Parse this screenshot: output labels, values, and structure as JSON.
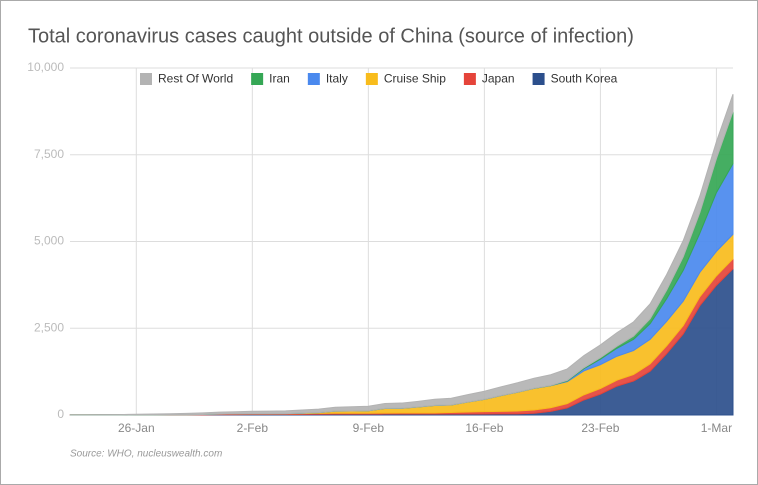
{
  "chart_data": {
    "type": "stacked-area",
    "title": "Total coronavirus cases caught outside of China (source of infection)",
    "source": "Source: WHO, nucleuswealth.com",
    "categories": [
      null,
      null,
      null,
      null,
      "26-Jan",
      null,
      null,
      null,
      null,
      null,
      null,
      "2-Feb",
      null,
      null,
      null,
      null,
      null,
      null,
      "9-Feb",
      null,
      null,
      null,
      null,
      null,
      null,
      "16-Feb",
      null,
      null,
      null,
      null,
      null,
      null,
      "23-Feb",
      null,
      null,
      null,
      null,
      null,
      null,
      "1-Mar",
      null
    ],
    "series": [
      {
        "name": "South Korea",
        "color": "#2c4f8c",
        "values": [
          1,
          1,
          2,
          2,
          3,
          4,
          4,
          4,
          4,
          11,
          12,
          15,
          15,
          16,
          19,
          23,
          24,
          24,
          25,
          27,
          28,
          28,
          28,
          28,
          29,
          30,
          31,
          31,
          51,
          104,
          204,
          433,
          602,
          833,
          977,
          1261,
          1766,
          2337,
          3150,
          3736,
          4212
        ]
      },
      {
        "name": "Japan",
        "color": "#e5443a",
        "values": [
          1,
          1,
          2,
          2,
          4,
          4,
          7,
          7,
          11,
          15,
          20,
          20,
          20,
          20,
          22,
          25,
          25,
          26,
          26,
          26,
          28,
          28,
          29,
          43,
          59,
          66,
          74,
          84,
          94,
          105,
          122,
          147,
          159,
          170,
          189,
          214,
          228,
          241,
          256,
          274,
          291
        ]
      },
      {
        "name": "Cruise Ship",
        "color": "#f8bc1c",
        "values": [
          0,
          0,
          0,
          0,
          0,
          0,
          0,
          0,
          0,
          0,
          0,
          0,
          0,
          0,
          10,
          20,
          61,
          64,
          70,
          135,
          135,
          175,
          218,
          218,
          285,
          355,
          454,
          542,
          621,
          634,
          634,
          691,
          691,
          691,
          691,
          705,
          705,
          705,
          705,
          705,
          705
        ]
      },
      {
        "name": "Italy",
        "color": "#4a89ee",
        "values": [
          0,
          0,
          0,
          0,
          0,
          0,
          0,
          0,
          0,
          2,
          2,
          2,
          2,
          2,
          2,
          2,
          3,
          3,
          3,
          3,
          3,
          3,
          3,
          3,
          3,
          3,
          3,
          3,
          3,
          3,
          20,
          62,
          155,
          229,
          322,
          453,
          655,
          888,
          1128,
          1694,
          2036
        ]
      },
      {
        "name": "Iran",
        "color": "#35a755",
        "values": [
          0,
          0,
          0,
          0,
          0,
          0,
          0,
          0,
          0,
          0,
          0,
          0,
          0,
          0,
          0,
          0,
          0,
          0,
          0,
          0,
          0,
          0,
          0,
          0,
          0,
          0,
          0,
          0,
          2,
          5,
          18,
          28,
          43,
          61,
          95,
          139,
          245,
          388,
          593,
          978,
          1501
        ]
      },
      {
        "name": "Rest Of World",
        "color": "#b3b3b3",
        "values": [
          2,
          3,
          5,
          8,
          15,
          20,
          25,
          35,
          45,
          55,
          60,
          70,
          75,
          80,
          90,
          100,
          110,
          120,
          130,
          140,
          150,
          160,
          175,
          190,
          210,
          230,
          250,
          270,
          290,
          310,
          330,
          350,
          370,
          390,
          410,
          430,
          450,
          470,
          480,
          490,
          500
        ]
      }
    ],
    "ylim": [
      0,
      10000
    ],
    "yticks": [
      0,
      {
        "value": 2500,
        "label": "2,500"
      },
      {
        "value": 5000,
        "label": "5,000"
      },
      {
        "value": 7500,
        "label": "7,500"
      },
      {
        "value": 10000,
        "label": "10,000"
      }
    ],
    "grid": true
  }
}
